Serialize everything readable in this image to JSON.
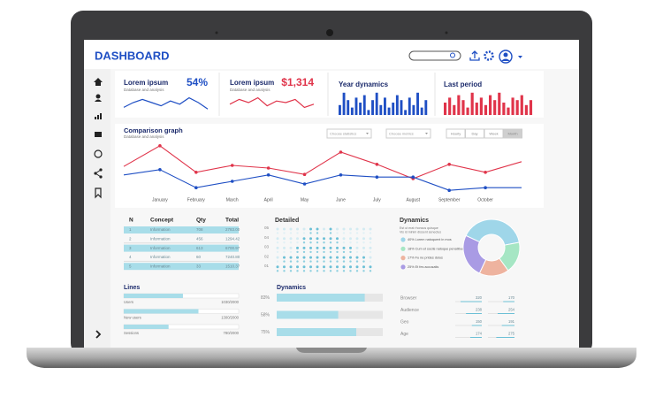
{
  "header": {
    "title": "DASHBOARD"
  },
  "cards": [
    {
      "title": "Lorem ipsum",
      "subtitle": "Database and analysis",
      "value": "54%",
      "color": "#1f4fc4",
      "ylim": [
        0,
        10
      ],
      "series": [
        2,
        5,
        7,
        5,
        3,
        6,
        4,
        8,
        5,
        1
      ]
    },
    {
      "title": "Lorem ipsum",
      "subtitle": "Database and analysis",
      "value": "$1,314",
      "color": "#e0344a",
      "ylim": [
        0,
        10
      ],
      "series": [
        4,
        7,
        5,
        8,
        3,
        6,
        5,
        7,
        2,
        4
      ]
    },
    {
      "title": "Year dynamics",
      "color": "#1f4fc4",
      "ylim": [
        0,
        10
      ],
      "bars": [
        4,
        9,
        6,
        3,
        7,
        5,
        8,
        2,
        6,
        9,
        4,
        7,
        3,
        5,
        8,
        6,
        2,
        7,
        4,
        9,
        3,
        6
      ]
    },
    {
      "title": "Last period",
      "color": "#e0344a",
      "ylim": [
        0,
        10
      ],
      "bars": [
        5,
        7,
        4,
        8,
        6,
        3,
        9,
        5,
        7,
        4,
        8,
        6,
        9,
        5,
        3,
        7,
        6,
        8,
        4,
        6
      ]
    }
  ],
  "comparison": {
    "type": "line",
    "title": "Comparison graph",
    "subtitle": "Database and analysis",
    "controls": [
      "Choose statistics",
      "Choose metrics"
    ],
    "tabs": [
      "Hourly",
      "Day",
      "Week",
      "Month"
    ],
    "active_tab": 3,
    "categories": [
      null,
      "January",
      "February",
      "March",
      "April",
      "May",
      "June",
      "July",
      "August",
      "September",
      "October",
      null
    ],
    "ylim": [
      0,
      100
    ],
    "series": [
      {
        "color": "#e0344a",
        "values": [
          53,
          92,
          42,
          55,
          50,
          38,
          80,
          57,
          30,
          57,
          42,
          62
        ]
      },
      {
        "color": "#1f4fc4",
        "values": [
          37,
          47,
          13,
          25,
          37,
          20,
          37,
          33,
          33,
          8,
          13,
          13
        ]
      }
    ]
  },
  "table": {
    "headers": [
      "N",
      "Concept",
      "Qty",
      "Total"
    ],
    "rows": [
      [
        "1",
        "Information",
        "708",
        "2783.00"
      ],
      [
        "2",
        "Information",
        "456",
        "1294.42"
      ],
      [
        "3",
        "Information",
        "613",
        "6700.97"
      ],
      [
        "4",
        "Information",
        "60",
        "7240.80"
      ],
      [
        "5",
        "Information",
        "33",
        "1510.37"
      ]
    ]
  },
  "detailed": {
    "title": "Detailed",
    "rows": [
      "05",
      "04",
      "03",
      "02",
      "01"
    ],
    "levels": [
      1,
      2,
      2,
      3,
      4,
      5,
      5,
      4,
      5,
      4,
      3,
      3,
      2,
      2,
      1
    ]
  },
  "donut": {
    "type": "pie",
    "title": "Dynamics",
    "note": [
      "Est ut erat rhoncus quisque",
      "Vis id minim dissent senectus"
    ],
    "values": [
      40,
      18,
      17,
      25
    ],
    "colors": [
      "#9fd6e9",
      "#a6e6c4",
      "#eeb39f",
      "#a99be4"
    ],
    "labels": [
      "40% Lorem natoquent in mos",
      "18% Cum et sociis natoque penatibus",
      "17% Fu ne prides dolus",
      "25% Et fes accusatis"
    ]
  },
  "lines": {
    "title": "Lines",
    "items": [
      {
        "name": "Users",
        "value": 1030,
        "max": 2000,
        "label": "1030/2000"
      },
      {
        "name": "New users",
        "value": 1300,
        "max": 2000,
        "label": "1300/2000"
      },
      {
        "name": "Sessions",
        "value": 780,
        "max": 2000,
        "label": "780/2000"
      }
    ]
  },
  "dynamics": {
    "title": "Dynamics",
    "values": [
      83,
      58,
      75
    ],
    "value_labels": [
      "83%",
      "58%",
      "75%"
    ],
    "max": 100
  },
  "stats": {
    "max": 400,
    "rows": [
      {
        "name": "Browser",
        "values": [
          320,
          170
        ]
      },
      {
        "name": "Audience",
        "values": [
          238,
          254
        ]
      },
      {
        "name": "Geo",
        "values": [
          150,
          191
        ]
      },
      {
        "name": "Age",
        "values": [
          174,
          275
        ]
      }
    ]
  }
}
